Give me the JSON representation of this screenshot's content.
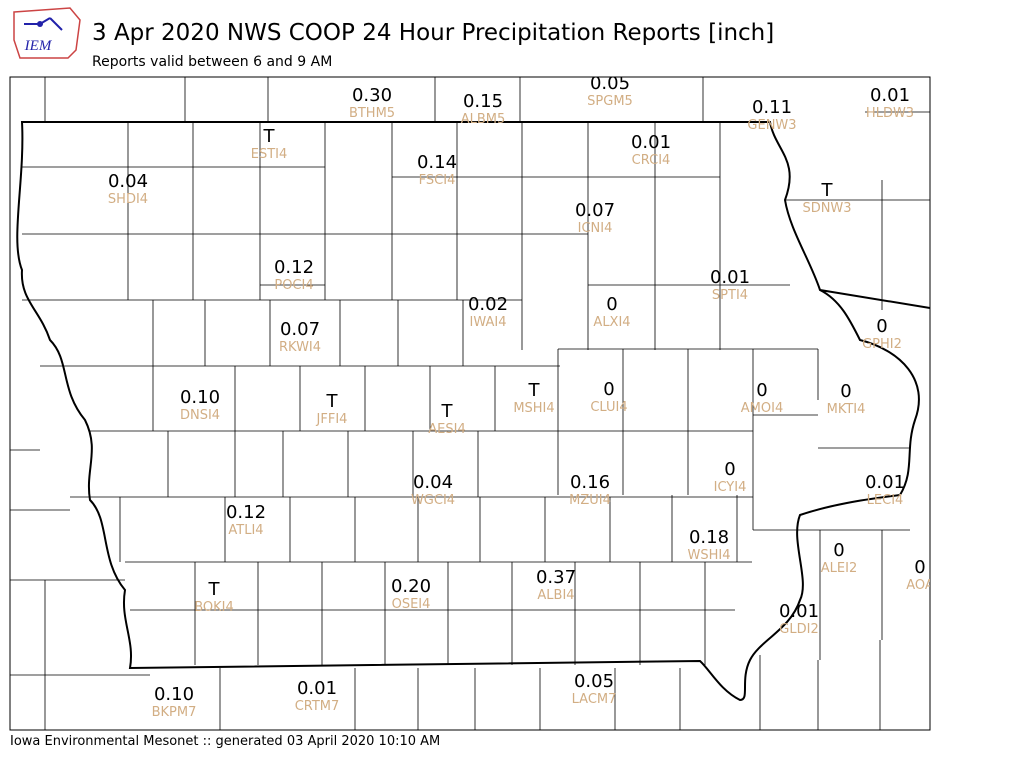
{
  "header": {
    "logo": "IEM",
    "title": "3 Apr 2020 NWS COOP 24 Hour Precipitation Reports [inch]",
    "subtitle": "Reports valid between 6 and 9 AM"
  },
  "stations": [
    {
      "value": "0.30",
      "id": "BTHM5"
    },
    {
      "value": "0.15",
      "id": "ALBM5"
    },
    {
      "value": "0.05",
      "id": "SPGM5"
    },
    {
      "value": "0.11",
      "id": "GENW3"
    },
    {
      "value": "0.01",
      "id": "HLDW3"
    },
    {
      "value": "T",
      "id": "ESTI4"
    },
    {
      "value": "0.01",
      "id": "CRCI4"
    },
    {
      "value": "0.14",
      "id": "FSCI4"
    },
    {
      "value": "0.04",
      "id": "SHDI4"
    },
    {
      "value": "T",
      "id": "SDNW3"
    },
    {
      "value": "0.07",
      "id": "ICNI4"
    },
    {
      "value": "0.12",
      "id": "POCI4"
    },
    {
      "value": "0.01",
      "id": "SPTI4"
    },
    {
      "value": "0.02",
      "id": "IWAI4"
    },
    {
      "value": "0",
      "id": "ALXI4"
    },
    {
      "value": "0",
      "id": "GPHI2"
    },
    {
      "value": "0.07",
      "id": "RKWI4"
    },
    {
      "value": "0",
      "id": "CLUI4"
    },
    {
      "value": "0",
      "id": "AMOI4"
    },
    {
      "value": "0",
      "id": "MKTI4"
    },
    {
      "value": "T",
      "id": "MSHI4"
    },
    {
      "value": "0.10",
      "id": "DNSI4"
    },
    {
      "value": "T",
      "id": "JFFI4"
    },
    {
      "value": "T",
      "id": "AESI4"
    },
    {
      "value": "0",
      "id": "ICYI4"
    },
    {
      "value": "0.04",
      "id": "WGCI4"
    },
    {
      "value": "0.16",
      "id": "MZUI4"
    },
    {
      "value": "0.01",
      "id": "LECI4"
    },
    {
      "value": "0.12",
      "id": "ATLI4"
    },
    {
      "value": "0.18",
      "id": "WSHI4"
    },
    {
      "value": "0",
      "id": "ALEI2"
    },
    {
      "value": "0",
      "id": "AOA"
    },
    {
      "value": "T",
      "id": "BOKI4"
    },
    {
      "value": "0.20",
      "id": "OSEI4"
    },
    {
      "value": "0.37",
      "id": "ALBI4"
    },
    {
      "value": "0.01",
      "id": "GLDI2"
    },
    {
      "value": "0.10",
      "id": "BKPM7"
    },
    {
      "value": "0.01",
      "id": "CRTM7"
    },
    {
      "value": "0.05",
      "id": "LACM7"
    }
  ],
  "footer": "Iowa Environmental Mesonet :: generated 03 April 2020 10:10 AM"
}
